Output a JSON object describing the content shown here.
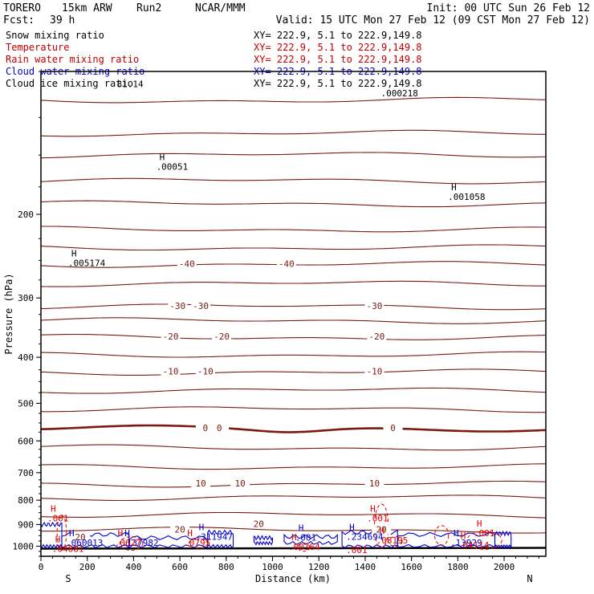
{
  "header": {
    "model": "TORERO",
    "res": "15km ARW",
    "run": "Run2",
    "org": "NCAR/MMM",
    "init": "Init: 00 UTC Sun 26 Feb 12",
    "fcst_label": "Fcst:",
    "fcst_value": "39 h",
    "valid": "Valid: 15 UTC Mon 27 Feb 12 (09 CST Mon 27 Feb 12)"
  },
  "fields": [
    {
      "name": "Snow mixing ratio",
      "xy": "XY= 222.9,  5.1 to 222.9,149.8",
      "color": "#000000"
    },
    {
      "name": "Temperature",
      "xy": "XY= 222.9,  5.1 to 222.9,149.8",
      "color": "#c00000"
    },
    {
      "name": "Rain water mixing ratio",
      "xy": "XY= 222.9,  5.1 to 222.9,149.8",
      "color": "#c00000"
    },
    {
      "name": "Cloud water mixing ratio",
      "xy": "XY= 222.9,  5.1 to 222.9,149.8",
      "color": "#0000cc"
    },
    {
      "name": "Cloud ice mixing ratio",
      "xy": "XY= 222.9,  5.1 to 222.9,149.8",
      "color": "#000000"
    }
  ],
  "colors": {
    "temperature": "#7a1a10",
    "rain": "#e00000",
    "cloud_water": "#0000cc",
    "axis": "#000000"
  },
  "chart_data": {
    "type": "contour cross-section",
    "ylabel": "Pressure (hPa)",
    "xlabel": "Distance (km)",
    "xlim": [
      0,
      2180
    ],
    "ylim": [
      1050,
      100
    ],
    "y_scale": "log",
    "x_ticks": [
      0,
      200,
      400,
      600,
      800,
      1000,
      1200,
      1400,
      1600,
      1800,
      2000
    ],
    "y_ticks": [
      200,
      300,
      400,
      500,
      600,
      700,
      800,
      900,
      1000
    ],
    "end_labels": {
      "left": "S",
      "right": "N"
    },
    "temperature_contours": [
      {
        "p": 115,
        "label": null
      },
      {
        "p": 135,
        "label": null
      },
      {
        "p": 150,
        "label": null
      },
      {
        "p": 170,
        "label": null
      },
      {
        "p": 190,
        "label": null
      },
      {
        "p": 215,
        "label": null
      },
      {
        "p": 235,
        "label": null
      },
      {
        "p": 255,
        "label": "-40",
        "label_x": [
          630,
          1060
        ]
      },
      {
        "p": 280,
        "label": null
      },
      {
        "p": 313,
        "label": "-30",
        "label_x": [
          590,
          690,
          1440
        ]
      },
      {
        "p": 335,
        "label": null
      },
      {
        "p": 363,
        "label": "-20",
        "label_x": [
          560,
          780,
          1450
        ]
      },
      {
        "p": 395,
        "label": null
      },
      {
        "p": 430,
        "label": "-10",
        "label_x": [
          560,
          710,
          1440
        ]
      },
      {
        "p": 470,
        "label": null
      },
      {
        "p": 515,
        "label": null
      },
      {
        "p": 565,
        "label": "0",
        "label_x": [
          710,
          770,
          1520
        ],
        "bold": true
      },
      {
        "p": 620,
        "label": null
      },
      {
        "p": 680,
        "label": null
      },
      {
        "p": 740,
        "label": "10",
        "label_x": [
          690,
          860,
          1440
        ]
      },
      {
        "p": 790,
        "label": null
      },
      {
        "p": 860,
        "label": null
      },
      {
        "p": 925,
        "label": "20",
        "label_x": [
          600,
          940,
          1470
        ]
      }
    ],
    "temperature_labels": [
      {
        "text": "-40",
        "x": 630,
        "p": 255
      },
      {
        "text": "-40",
        "x": 1060,
        "p": 255
      },
      {
        "text": "-30",
        "x": 590,
        "p": 313
      },
      {
        "text": "-30",
        "x": 690,
        "p": 313
      },
      {
        "text": "-30",
        "x": 1440,
        "p": 313
      },
      {
        "text": "-20",
        "x": 560,
        "p": 363
      },
      {
        "text": "-20",
        "x": 780,
        "p": 363
      },
      {
        "text": "-20",
        "x": 1450,
        "p": 363
      },
      {
        "text": "-10",
        "x": 560,
        "p": 430
      },
      {
        "text": "-10",
        "x": 710,
        "p": 430
      },
      {
        "text": "-10",
        "x": 1440,
        "p": 430
      },
      {
        "text": "0",
        "x": 710,
        "p": 565
      },
      {
        "text": "0",
        "x": 770,
        "p": 565
      },
      {
        "text": "0",
        "x": 1520,
        "p": 565
      },
      {
        "text": "10",
        "x": 690,
        "p": 740
      },
      {
        "text": "10",
        "x": 860,
        "p": 740
      },
      {
        "text": "10",
        "x": 1440,
        "p": 740
      },
      {
        "text": "20",
        "x": 600,
        "p": 925
      },
      {
        "text": "20",
        "x": 940,
        "p": 900
      },
      {
        "text": "20",
        "x": 1470,
        "p": 925
      },
      {
        "text": "20",
        "x": 170,
        "p": 960
      }
    ],
    "extrema_labels": [
      {
        "h": "H",
        "text": ".00051",
        "x": 560,
        "p": 160,
        "color": "black"
      },
      {
        "h": "H",
        "text": ".001058",
        "x": 1820,
        "p": 185,
        "color": "black"
      },
      {
        "h": "H",
        "text": ".005174",
        "x": 180,
        "p": 255,
        "color": "black"
      },
      {
        "h": "",
        "text": "81.14",
        "x": 390,
        "p": 107,
        "color": "black"
      },
      {
        "h": "",
        "text": ".000218",
        "x": 1530,
        "p": 112,
        "color": "black"
      },
      {
        "h": "H",
        "text": ".311947",
        "x": 730,
        "p": 962,
        "color": "blue"
      },
      {
        "h": "H",
        "text": ".001",
        "x": 1160,
        "p": 965,
        "color": "blue"
      },
      {
        "h": "H",
        "text": ".234694",
        "x": 1380,
        "p": 962,
        "color": "blue"
      },
      {
        "h": "H",
        "text": ".060013",
        "x": 170,
        "p": 990,
        "color": "blue"
      },
      {
        "h": "H",
        "text": ".137982",
        "x": 410,
        "p": 990,
        "color": "blue"
      },
      {
        "h": "H",
        "text": ".13929",
        "x": 1830,
        "p": 990,
        "color": "blue"
      },
      {
        "h": "H",
        "text": ".001",
        "x": 90,
        "p": 880,
        "color": "red"
      },
      {
        "h": "H",
        "text": ".001",
        "x": 1470,
        "p": 880,
        "color": "red"
      },
      {
        "h": "H",
        "text": ".001",
        "x": 1930,
        "p": 945,
        "color": "red"
      },
      {
        "h": "H",
        "text": ".08195",
        "x": 1510,
        "p": 978,
        "color": "red"
      },
      {
        "h": "H",
        "text": ".0627",
        "x": 380,
        "p": 990,
        "color": "red"
      },
      {
        "h": "H",
        "text": ".0795",
        "x": 680,
        "p": 990,
        "color": "red"
      },
      {
        "h": "H",
        "text": ".00164",
        "x": 1130,
        "p": 1010,
        "color": "red"
      },
      {
        "h": "H",
        "text": ".04114",
        "x": 1860,
        "p": 1003,
        "color": "red"
      },
      {
        "h": "H",
        "text": ".04881",
        "x": 110,
        "p": 1020,
        "color": "red"
      },
      {
        "h": "",
        "text": ".001",
        "x": 1380,
        "p": 1025,
        "color": "red"
      }
    ],
    "cloud_water_regions": [
      {
        "x0": 0,
        "x1": 90,
        "p0": 900,
        "p1": 1000
      },
      {
        "x0": 90,
        "x1": 380,
        "p0": 945,
        "p1": 1000
      },
      {
        "x0": 380,
        "x1": 720,
        "p0": 960,
        "p1": 1000
      },
      {
        "x0": 720,
        "x1": 830,
        "p0": 935,
        "p1": 1000
      },
      {
        "x0": 920,
        "x1": 1000,
        "p0": 960,
        "p1": 985
      },
      {
        "x0": 1050,
        "x1": 1280,
        "p0": 955,
        "p1": 985
      },
      {
        "x0": 1300,
        "x1": 1540,
        "p0": 935,
        "p1": 1000
      },
      {
        "x0": 1540,
        "x1": 1960,
        "p0": 945,
        "p1": 1000
      },
      {
        "x0": 1960,
        "x1": 2030,
        "p0": 940,
        "p1": 1000
      }
    ],
    "rain_regions": [
      {
        "x0": 70,
        "x1": 110,
        "p0": 860,
        "p1": 1020
      },
      {
        "x0": 340,
        "x1": 440,
        "p0": 955,
        "p1": 1020
      },
      {
        "x0": 640,
        "x1": 720,
        "p0": 960,
        "p1": 1010
      },
      {
        "x0": 1110,
        "x1": 1160,
        "p0": 985,
        "p1": 1025
      },
      {
        "x0": 1440,
        "x1": 1500,
        "p0": 815,
        "p1": 1010
      },
      {
        "x0": 1500,
        "x1": 1560,
        "p0": 955,
        "p1": 1000
      },
      {
        "x0": 1700,
        "x1": 1760,
        "p0": 905,
        "p1": 995
      },
      {
        "x0": 1840,
        "x1": 1990,
        "p0": 930,
        "p1": 1015
      }
    ]
  }
}
